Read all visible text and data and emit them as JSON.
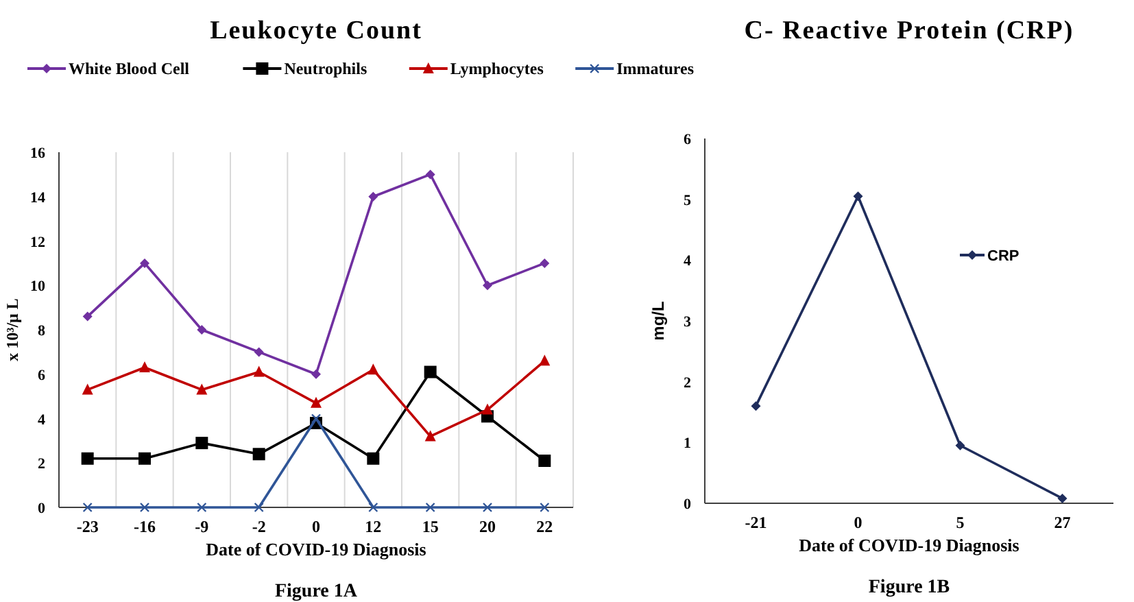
{
  "chart_data": [
    {
      "type": "line",
      "title": "Leukocyte Count",
      "xlabel": "Date of COVID-19 Diagnosis",
      "ylabel": "x 10³/μ L",
      "annotations": [
        "Figure 1A"
      ],
      "categories": [
        "-23",
        "-16",
        "-9",
        "-2",
        "0",
        "12",
        "15",
        "20",
        "22"
      ],
      "series": [
        {
          "name": "White Blood Cell",
          "color": "#7030a0",
          "marker": "diamond",
          "values": [
            8.6,
            11,
            8,
            7,
            6,
            14,
            15,
            10,
            11
          ]
        },
        {
          "name": "Neutrophils",
          "color": "#000000",
          "marker": "square",
          "values": [
            2.2,
            2.2,
            2.9,
            2.4,
            3.8,
            2.2,
            6.1,
            4.1,
            2.1
          ]
        },
        {
          "name": "Lymphocytes",
          "color": "#c00000",
          "marker": "triangle",
          "values": [
            5.3,
            6.3,
            5.3,
            6.1,
            4.7,
            6.2,
            3.2,
            4.4,
            6.6
          ]
        },
        {
          "name": "Immatures",
          "color": "#2f5597",
          "marker": "cross",
          "values": [
            0,
            0,
            0,
            0,
            4,
            0,
            0,
            0,
            0
          ]
        }
      ],
      "ylim": [
        0,
        16
      ],
      "yticks": [
        0,
        2,
        4,
        6,
        8,
        10,
        12,
        14,
        16
      ],
      "grid": "x",
      "legend": "top"
    },
    {
      "type": "line",
      "title": "C- Reactive Protein (CRP)",
      "xlabel": "Date of COVID-19 Diagnosis",
      "ylabel": "mg/L",
      "annotations": [
        "Figure 1B"
      ],
      "categories": [
        "-21",
        "0",
        "5",
        "27"
      ],
      "series": [
        {
          "name": "CRP",
          "color": "#1f2d5c",
          "marker": "diamond",
          "values": [
            1.6,
            5.05,
            0.95,
            0.08
          ]
        }
      ],
      "ylim": [
        0,
        6
      ],
      "yticks": [
        0,
        1,
        2,
        3,
        4,
        5,
        6
      ],
      "legend": "right"
    }
  ]
}
